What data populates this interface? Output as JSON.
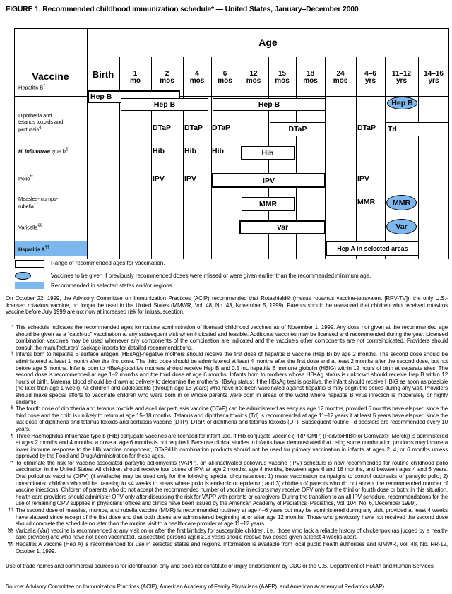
{
  "title": "FIGURE 1. Recommended childhood immunization schedule* — United States, January–December 2000",
  "table": {
    "age_label": "Age",
    "vaccine_label": "Vaccine",
    "columns": [
      [
        "Birth",
        ""
      ],
      [
        "1",
        "mo"
      ],
      [
        "2",
        "mos"
      ],
      [
        "4",
        "mos"
      ],
      [
        "6",
        "mos"
      ],
      [
        "12",
        "mos"
      ],
      [
        "15",
        "mos"
      ],
      [
        "18",
        "mos"
      ],
      [
        "24",
        "mos"
      ],
      [
        "4–6",
        "yrs"
      ],
      [
        "11–12",
        "yrs"
      ],
      [
        "14–16",
        "yrs"
      ]
    ],
    "rows": {
      "hepb": {
        "label": "Hepatitis B",
        "mark": "†"
      },
      "dtap": {
        "label1": "Diphtheria and",
        "label2": "tetanus toxoids and",
        "label3": "pertussis",
        "mark": "§"
      },
      "hib": {
        "label_italic": "H. influenzae",
        "label": " type b",
        "mark": "¶"
      },
      "polio": {
        "label": "Polio",
        "mark": "**"
      },
      "mmr": {
        "label1": "Measles-mumps-",
        "label2": "rubella",
        "mark": "††"
      },
      "var": {
        "label": "Varicella",
        "mark": "§§"
      },
      "hepa": {
        "label": "Hepatitis A",
        "mark": "¶¶"
      }
    },
    "cells": {
      "hepb_birth": "Hep B",
      "hepb_1_4": "Hep B",
      "hepb_6_18": "Hep B",
      "hepb_catchup": "Hep B",
      "dtap_2": "DTaP",
      "dtap_4": "DTaP",
      "dtap_6": "DTaP",
      "dtap_15_18": "DTaP",
      "dtap_4_6": "DTaP",
      "td": "Td",
      "hib_2": "Hib",
      "hib_4": "Hib",
      "hib_6": "Hib",
      "hib_12_15": "Hib",
      "ipv_2": "IPV",
      "ipv_4": "IPV",
      "ipv_6_18": "IPV",
      "ipv_4_6": "IPV",
      "mmr_12_15": "MMR",
      "mmr_4_6": "MMR",
      "mmr_catchup": "MMR",
      "var_12_18": "Var",
      "var_catchup": "Var",
      "hepa": "Hep A in selected areas"
    }
  },
  "legend": {
    "range": "Range of recommended ages for vaccination.",
    "catchup": "Vaccines to be given if previously recommended doses were missed or were given earlier than the recommended minimum age.",
    "selected": "Recommended in selected states and/or regions."
  },
  "colors": {
    "catchup_fill": "#7cb8ee",
    "selected_fill": "#7cb8ee"
  },
  "rotavirus_note": "On October 22, 1999, the Advisory Committee on Immunization Practices (ACIP) recommended that Rotashield® (rhesus rotavirus vaccine-tetravalent [RRV-TV]), the only U.S.-licensed rotavirus vaccine, no longer be used in the United States (MMWR, Vol. 48, No. 43, November 5, 1999). Parents should be reassured that children who received rotavirus vaccine before July 1999 are not now at increased risk for intussusception.",
  "footnotes": [
    {
      "mark": "*",
      "text": "This schedule indicates the recommended ages for routine administration of licensed childhood vaccines as of November 1, 1999. Any dose not given at the recommended age should be given as a “catch-up” vaccination at any subsequent visit when indicated and feasible. Additional vaccines may be licensed and recommended during the year. Licensed combination vaccines may be used whenever any components of the combination are indicated and the vaccine’s other components are not contraindicated. Providers should consult the manufacturers’ package inserts for detailed recommendations."
    },
    {
      "mark": "†",
      "text": "Infants born to hepatitis B surface antigen (HBsAg)-negative mothers should receive the first dose of hepatitis B vaccine (Hep B) by age 2 months. The second dose should be administered at least 1 month after the first dose. The third dose should be administered at least 4 months after the first dose and at least 2 months after the second dose, but not before age 6 months. Infants born to HBsAg-positive mothers should receive Hep B and 0.5 mL hepatitis B immune globulin (HBIG) within 12 hours of birth at separate sites. The second dose is recommended at age 1–2 months and the third dose at age 6 months. Infants born to mothers whose HBsAg status is unknown should receive Hep B within 12 hours of birth. Maternal blood should be drawn at delivery to determine the mother’s HBsAg status; if the HBsAg test is positive, the infant should receive HBIG as soon as possible (no later than age 1 week). All children and adolescents (through age 18 years) who have not been vaccinated against hepatitis B may begin the series during any visit. Providers should make special efforts to vaccinate children who were born in or whose parents were born in areas of the world where hepatitis B virus infection is moderately or highly endemic."
    },
    {
      "mark": "§",
      "text": "The fourth dose of diphtheria and tetanus toxoids and acellular pertussis vaccine (DTaP) can be administered as early as age 12 months, provided 6 months have elapsed since the third dose and the child is unlikely to return at age 15–18 months. Tetanus and diphtheria toxoids (Td) is recommended at age 11–12 years if at least 5 years have elapsed since the last dose of diphtheria and tetanus toxoids and pertussis vaccine (DTP), DTaP, or diphtheria and tetanus toxoids (DT). Subsequent routine Td boosters are recommended every 10 years."
    },
    {
      "mark": "¶",
      "text": "Three Haemophilus influenzae type b (Hib) conjugate vaccines are licensed for infant use. If Hib conjugate vaccine (PRP-OMP) (PedvaxHIB® or ComVax® [Merck]) is administered at ages 2 months and 4 months, a dose at age 6 months is not required. Because clinical studies in infants have demonstrated that using some combination products may induce a lower immune response to the Hib vaccine component, DTaP/Hib combination products should not be used for primary vaccination in infants at ages 2, 4, or 6 months unless approved by the Food and Drug Administration for these ages."
    },
    {
      "mark": "**",
      "text": "To eliminate the risk for vaccine-associated paralytic poliomyelitis (VAPP), an all-inactivated poliovirus vaccine (IPV) schedule is now recommended for routine childhood polio vaccination in the United States. All children should receive four doses of IPV: at age 2 months, age 4 months, between ages 6 and 18 months, and between ages 4 and 6 years. Oral poliovirus vaccine (OPV) (if available) may be used only for the following special circumstances: 1) mass vaccination campaigns to control outbreaks of paralytic polio; 2) unvaccinated children who will be traveling in <4 weeks to areas where polio is endemic or epidemic; and 3) children of parents who do not accept the recommended number of vaccine injections. Children of parents who do not accept the recommended number of vaccine injections may receive OPV only for the third or fourth dose or both; in this situation, health-care providers should administer OPV only after discussing the risk for VAPP with parents or caregivers. During the transition to an all-IPV schedule, recommendations for the use of remaining OPV supplies in physicians’ offices and clinics have been issued by the American Academy of Pediatrics (Pediatrics, Vol. 104, No. 6, December 1999)."
    },
    {
      "mark": "††",
      "text": "The second dose of measles, mumps, and rubella vaccine (MMR) is recommended routinely at age 4–6 years but may be administered during any visit, provided at least 4 weeks have elapsed since receipt of the first dose and that both doses are administered beginning at or after age 12 months. Those who previously have not received the second dose should complete the schedule no later than the routine visit to a health-care provider at age 11–12 years."
    },
    {
      "mark": "§§",
      "text": "Varicella (Var) vaccine is recommended at any visit on or after the first birthday for susceptible children, i.e., those who lack a reliable history of chickenpox (as judged by a health-care provider) and who have not been vaccinated. Susceptible persons aged ≥13 years should receive two doses given at least 4 weeks apart."
    },
    {
      "mark": "¶¶",
      "text": "Hepatitis A vaccine (Hep A) is recommended for use in selected states and regions. Information is available from local public health authorities and MMWR, Vol. 48, No. RR-12, October 1, 1999."
    }
  ],
  "disclaimer": "Use of trade names and commercial sources is for identification only and does not constitute or imply endorsement by CDC or the U.S. Department of Health and Human Services.",
  "source": "Source: Advisory Committee on Immunization Practices (ACIP), American Academy of Family Physicians (AAFP), and American Academy of Pediatrics (AAP)."
}
